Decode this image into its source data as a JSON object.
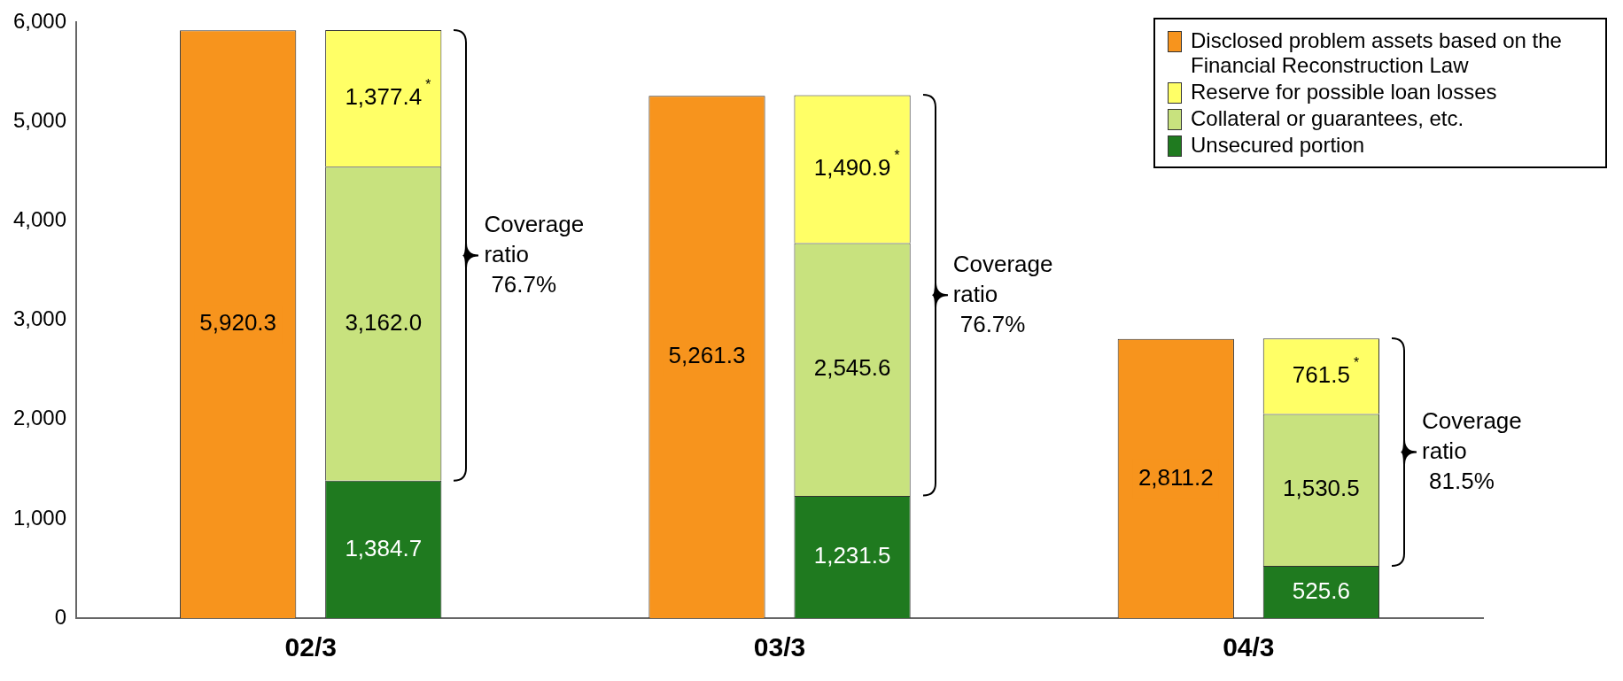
{
  "chart_data": {
    "type": "bar",
    "categories": [
      "02/3",
      "03/3",
      "04/3"
    ],
    "ylim": [
      0,
      6000
    ],
    "yticks": [
      {
        "value": 0,
        "label": "0"
      },
      {
        "value": 1000,
        "label": "1,000"
      },
      {
        "value": 2000,
        "label": "2,000"
      },
      {
        "value": 3000,
        "label": "3,000"
      },
      {
        "value": 4000,
        "label": "4,000"
      },
      {
        "value": 5000,
        "label": "5,000"
      },
      {
        "value": 6000,
        "label": "6,000"
      }
    ],
    "grid": false,
    "legend": "top right",
    "series": [
      {
        "name": "Disclosed problem assets based on the Financial Reconstruction Law",
        "color": "#f7941d",
        "values": [
          5920.3,
          5261.3,
          2811.2
        ],
        "value_labels": [
          "5,920.3",
          "5,261.3",
          "2,811.2"
        ]
      },
      {
        "name": "Unsecured portion",
        "color": "#1f7a1f",
        "base": [
          0,
          0,
          0
        ],
        "values": [
          1384.7,
          1231.5,
          525.6
        ],
        "value_labels": [
          "1,384.7",
          "1,231.5",
          "525.6"
        ]
      },
      {
        "name": "Collateral or guarantees, etc.",
        "color": "#c8e27e",
        "base": [
          1384.7,
          1231.5,
          525.6
        ],
        "values": [
          3162.0,
          2545.6,
          1530.5
        ],
        "value_labels": [
          "3,162.0",
          "2,545.6",
          "1,530.5"
        ]
      },
      {
        "name": "Reserve for possible loan losses",
        "color": "#ffff66",
        "base": [
          4546.7,
          3777.1,
          2056.1
        ],
        "values": [
          1377.4,
          1490.9,
          761.5
        ],
        "value_labels": [
          "1,377.4$^{*}$",
          "1,490.9$^{*}$",
          "761.5$^{*}$"
        ]
      }
    ],
    "annotations": [
      "Coverage ratio 76.7%",
      "Coverage ratio 76.7%",
      "Coverage ratio 81.5%"
    ]
  }
}
